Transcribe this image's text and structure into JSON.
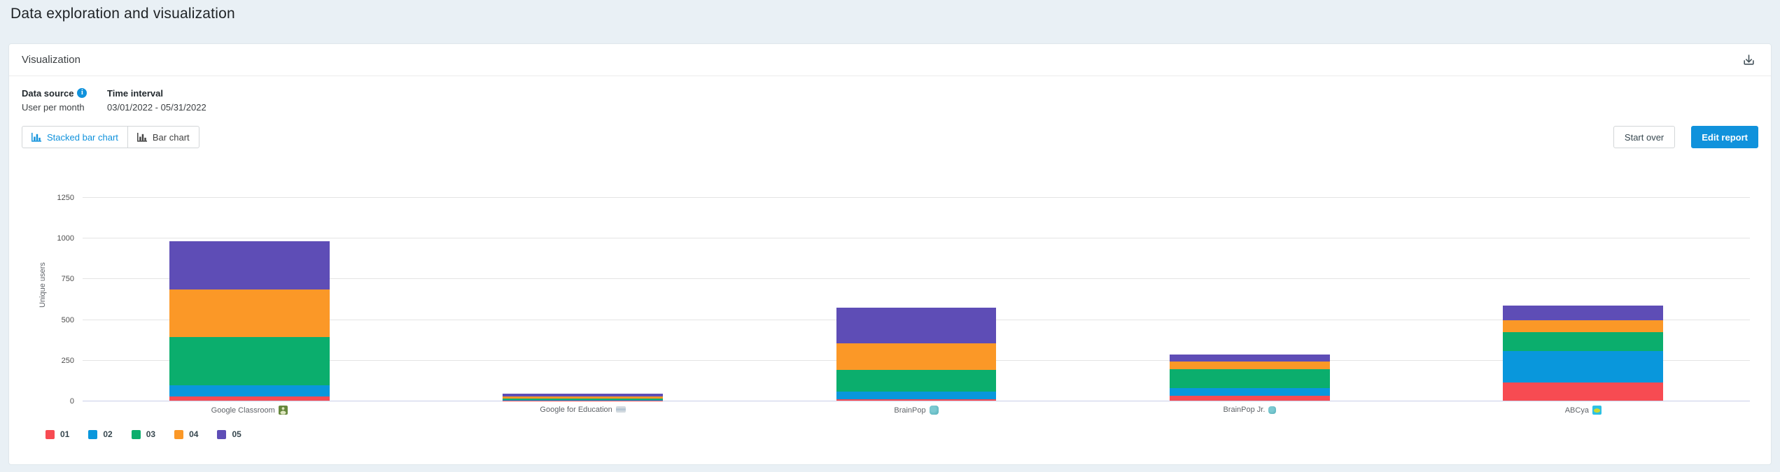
{
  "page": {
    "title": "Data exploration and visualization"
  },
  "panel": {
    "header": {
      "title": "Visualization"
    },
    "meta": {
      "data_source_label": "Data source",
      "data_source_value": "User per month",
      "time_interval_label": "Time interval",
      "time_interval_value": "03/01/2022 - 05/31/2022"
    },
    "chart_type_buttons": [
      {
        "label": "Stacked bar chart",
        "active": true
      },
      {
        "label": "Bar chart",
        "active": false
      }
    ],
    "actions": {
      "start_over_label": "Start over",
      "edit_report_label": "Edit report"
    }
  },
  "colors": {
    "accent_blue": "#1092dc",
    "page_background": "#e9f0f5",
    "gridline": "#e4e4e4",
    "zero_line": "#c9cee8"
  },
  "chart_data": {
    "type": "bar",
    "variant": "stacked",
    "title": "",
    "xlabel": "",
    "ylabel": "Unique users",
    "ylim": [
      0,
      1250
    ],
    "ytick_step": 250,
    "grid": true,
    "legend_position": "bottom-left",
    "categories": [
      {
        "label": "Google Classroom",
        "icon": "google-classroom-icon"
      },
      {
        "label": "Google for Education",
        "icon": "google-for-education-icon"
      },
      {
        "label": "BrainPop",
        "icon": "brainpop-icon"
      },
      {
        "label": "BrainPop Jr.",
        "icon": "brainpop-jr-icon"
      },
      {
        "label": "ABCya",
        "icon": "abcya-icon"
      }
    ],
    "series": [
      {
        "name": "01",
        "color": "#f74b52",
        "values": [
          25,
          2,
          10,
          28,
          110
        ]
      },
      {
        "name": "02",
        "color": "#0997dc",
        "values": [
          70,
          3,
          45,
          50,
          195
        ]
      },
      {
        "name": "03",
        "color": "#0bae6d",
        "values": [
          295,
          6,
          133,
          117,
          115
        ]
      },
      {
        "name": "04",
        "color": "#fb9827",
        "values": [
          295,
          13,
          165,
          46,
          73
        ]
      },
      {
        "name": "05",
        "color": "#5e4db6",
        "values": [
          295,
          18,
          220,
          44,
          92
        ]
      }
    ],
    "totals": [
      980,
      42,
      573,
      285,
      585
    ]
  }
}
